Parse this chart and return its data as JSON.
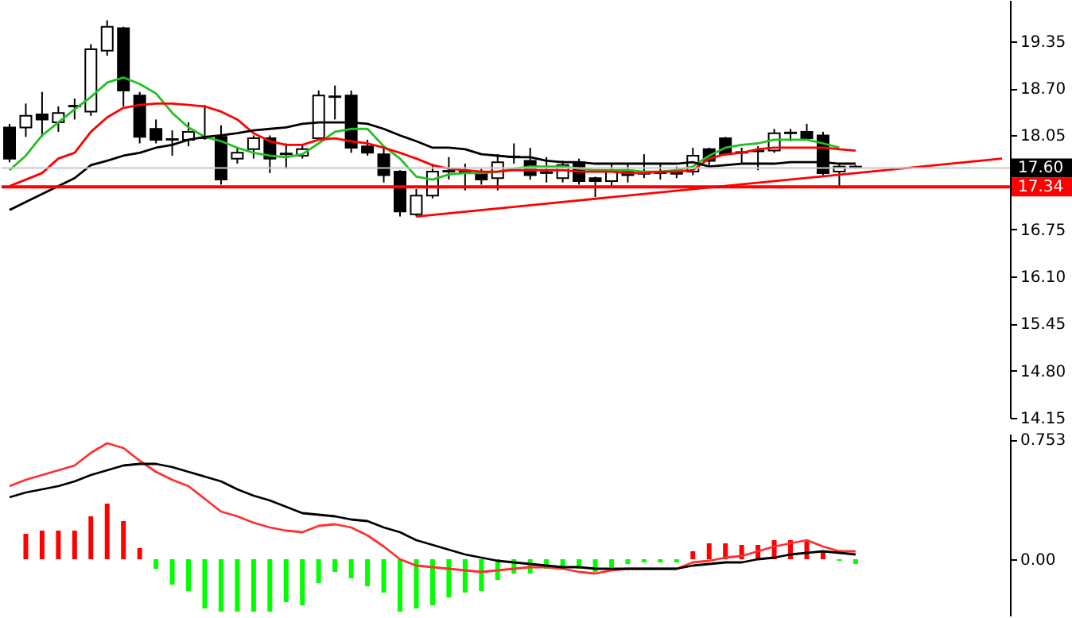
{
  "chart_data": [
    {
      "type": "candlestick",
      "tick_labels": "y",
      "categories": [
        null,
        null,
        null,
        null,
        null,
        null,
        null,
        null,
        null,
        null,
        null,
        null,
        null,
        null,
        null,
        null,
        null,
        null,
        null,
        null,
        null,
        null,
        null,
        null,
        null,
        null,
        null,
        null,
        null,
        null,
        null,
        null,
        null,
        null,
        null,
        null,
        null,
        null,
        null,
        null,
        null,
        null,
        null,
        null,
        null,
        null,
        null,
        null,
        null,
        null,
        null,
        null,
        null,
        null,
        null,
        null,
        null,
        null,
        null,
        null,
        null,
        null
      ],
      "ohlc": [
        [
          18.16,
          18.21,
          17.68,
          17.73
        ],
        [
          18.16,
          18.49,
          18.03,
          18.32
        ],
        [
          18.34,
          18.65,
          18.03,
          18.27
        ],
        [
          18.23,
          18.45,
          18.1,
          18.36
        ],
        [
          18.45,
          18.56,
          18.27,
          18.46
        ],
        [
          18.38,
          19.31,
          18.32,
          19.24
        ],
        [
          19.22,
          19.64,
          19.15,
          19.55
        ],
        [
          19.53,
          19.55,
          18.45,
          18.67
        ],
        [
          18.6,
          18.65,
          17.94,
          18.03
        ],
        [
          18.14,
          18.27,
          17.94,
          17.99
        ],
        [
          17.99,
          18.12,
          17.77,
          18.0
        ],
        [
          17.99,
          18.23,
          17.9,
          18.1
        ],
        [
          18.01,
          18.47,
          17.99,
          18.02
        ],
        [
          18.03,
          18.19,
          17.37,
          17.44
        ],
        [
          17.73,
          17.88,
          17.66,
          17.81
        ],
        [
          17.86,
          18.05,
          17.73,
          18.01
        ],
        [
          18.01,
          18.05,
          17.53,
          17.73
        ],
        [
          17.79,
          17.94,
          17.59,
          17.8
        ],
        [
          17.77,
          17.92,
          17.73,
          17.86
        ],
        [
          18.01,
          18.67,
          17.99,
          18.6
        ],
        [
          18.58,
          18.74,
          18.27,
          18.59
        ],
        [
          18.6,
          18.67,
          17.81,
          17.88
        ],
        [
          17.9,
          17.99,
          17.77,
          17.81
        ],
        [
          17.79,
          17.9,
          17.4,
          17.5
        ],
        [
          17.55,
          17.57,
          16.93,
          17.0
        ],
        [
          16.96,
          17.31,
          16.93,
          17.22
        ],
        [
          17.22,
          17.66,
          17.18,
          17.55
        ],
        [
          17.55,
          17.75,
          17.44,
          17.56
        ],
        [
          17.55,
          17.66,
          17.29,
          17.54
        ],
        [
          17.53,
          17.59,
          17.37,
          17.44
        ],
        [
          17.46,
          17.79,
          17.29,
          17.68
        ],
        [
          17.75,
          17.94,
          17.66,
          17.76
        ],
        [
          17.7,
          17.88,
          17.44,
          17.5
        ],
        [
          17.53,
          17.75,
          17.4,
          17.54
        ],
        [
          17.46,
          17.7,
          17.4,
          17.64
        ],
        [
          17.68,
          17.73,
          17.37,
          17.42
        ],
        [
          17.46,
          17.48,
          17.2,
          17.42
        ],
        [
          17.42,
          17.66,
          17.35,
          17.57
        ],
        [
          17.55,
          17.66,
          17.4,
          17.5
        ],
        [
          17.53,
          17.79,
          17.46,
          17.52
        ],
        [
          17.53,
          17.66,
          17.44,
          17.54
        ],
        [
          17.52,
          17.62,
          17.46,
          17.53
        ],
        [
          17.55,
          17.88,
          17.5,
          17.77
        ],
        [
          17.86,
          17.88,
          17.64,
          17.7
        ],
        [
          18.01,
          18.03,
          17.77,
          17.79
        ],
        [
          17.81,
          17.88,
          17.66,
          17.82
        ],
        [
          17.84,
          17.9,
          17.57,
          17.83
        ],
        [
          17.84,
          18.14,
          17.81,
          18.08
        ],
        [
          18.08,
          18.14,
          17.97,
          18.09
        ],
        [
          18.1,
          18.21,
          17.99,
          18.01
        ],
        [
          18.05,
          18.1,
          17.5,
          17.53
        ],
        [
          17.55,
          17.66,
          17.35,
          17.62
        ],
        [
          17.61,
          17.64,
          17.59,
          17.62
        ],
        null,
        null,
        null,
        null,
        null,
        null,
        null,
        null,
        null
      ],
      "series": [
        {
          "type": "line",
          "color": "#22c022",
          "values": [
            17.57,
            17.77,
            18.05,
            18.23,
            18.41,
            18.58,
            18.78,
            18.85,
            18.76,
            18.63,
            18.36,
            18.16,
            18.03,
            17.97,
            17.88,
            17.81,
            17.77,
            17.75,
            17.79,
            17.94,
            18.1,
            18.14,
            18.14,
            17.9,
            17.73,
            17.48,
            17.44,
            17.51,
            17.53,
            17.53,
            17.55,
            17.59,
            17.62,
            17.62,
            17.62,
            17.59,
            17.57,
            17.57,
            17.57,
            17.55,
            17.55,
            17.57,
            17.62,
            17.77,
            17.88,
            17.92,
            17.94,
            17.99,
            17.99,
            17.99,
            17.94,
            17.88,
            null,
            null,
            null,
            null,
            null,
            null,
            null,
            null,
            null,
            null
          ]
        },
        {
          "type": "line",
          "color": "#ff0000",
          "values": [
            17.35,
            17.44,
            17.53,
            17.73,
            17.81,
            18.1,
            18.3,
            18.43,
            18.47,
            18.49,
            18.49,
            18.47,
            18.45,
            18.38,
            18.27,
            18.08,
            17.97,
            17.92,
            17.92,
            17.99,
            18.01,
            17.97,
            17.94,
            17.88,
            17.81,
            17.73,
            17.64,
            17.59,
            17.57,
            17.55,
            17.55,
            17.57,
            17.57,
            17.57,
            17.57,
            17.55,
            17.55,
            17.55,
            17.53,
            17.53,
            17.55,
            17.55,
            17.57,
            17.73,
            17.79,
            17.81,
            17.86,
            17.88,
            17.88,
            17.88,
            17.88,
            17.86,
            17.84,
            null,
            null,
            null,
            null,
            null,
            null,
            null,
            null,
            null
          ]
        },
        {
          "type": "line",
          "color": "#000000",
          "values": [
            17.02,
            17.13,
            17.24,
            17.35,
            17.46,
            17.64,
            17.7,
            17.77,
            17.81,
            17.88,
            17.92,
            17.99,
            18.03,
            18.05,
            18.08,
            18.12,
            18.14,
            18.16,
            18.21,
            18.23,
            18.23,
            18.23,
            18.21,
            18.14,
            18.05,
            17.97,
            17.88,
            17.88,
            17.86,
            17.79,
            17.77,
            17.75,
            17.75,
            17.7,
            17.68,
            17.68,
            17.66,
            17.66,
            17.66,
            17.66,
            17.66,
            17.66,
            17.68,
            17.62,
            17.64,
            17.66,
            17.66,
            17.66,
            17.68,
            17.68,
            17.68,
            17.66,
            17.66,
            null,
            null,
            null,
            null,
            null,
            null,
            null,
            null,
            null
          ]
        },
        {
          "type": "line",
          "color": "#ff0000",
          "values": [
            null,
            null,
            null,
            null,
            null,
            null,
            null,
            null,
            null,
            null,
            null,
            null,
            null,
            null,
            null,
            null,
            null,
            null,
            null,
            null,
            null,
            null,
            null,
            null,
            null,
            16.93,
            null,
            null,
            null,
            null,
            null,
            null,
            null,
            null,
            null,
            null,
            null,
            null,
            null,
            null,
            null,
            null,
            null,
            null,
            null,
            null,
            null,
            null,
            null,
            null,
            null,
            null,
            null,
            null,
            null,
            null,
            null,
            null,
            null,
            null,
            null,
            17.73
          ]
        }
      ],
      "ylim": [
        14.15,
        19.92
      ],
      "yticks": [
        19.35,
        {
          "value": 18.7,
          "label": "18.70"
        },
        {
          "value": 18.05,
          "label": "18.05"
        },
        16.75,
        {
          "value": 16.1,
          "label": "16.10"
        },
        15.45,
        {
          "value": 14.8,
          "label": "14.80"
        },
        14.15
      ],
      "ref_lines": [
        {
          "axis": "y",
          "value": 17.6,
          "label": "17.60",
          "color": "#c8c8c8"
        },
        {
          "axis": "y",
          "value": 17.34,
          "label": "17.34",
          "color": "#ff0000"
        }
      ]
    },
    {
      "type": "bar",
      "tick_labels": "y",
      "categories": [
        null,
        null,
        null,
        null,
        null,
        null,
        null,
        null,
        null,
        null,
        null,
        null,
        null,
        null,
        null,
        null,
        null,
        null,
        null,
        null,
        null,
        null,
        null,
        null,
        null,
        null,
        null,
        null,
        null,
        null,
        null,
        null,
        null,
        null,
        null,
        null,
        null,
        null,
        null,
        null,
        null,
        null,
        null,
        null,
        null,
        null,
        null,
        null,
        null,
        null,
        null,
        null,
        null,
        null,
        null,
        null,
        null,
        null,
        null,
        null,
        null,
        null
      ],
      "series": [
        {
          "type": "bar",
          "color": "#ff0000",
          "values": [
            null,
            0.16,
            0.18,
            0.18,
            0.18,
            0.27,
            0.35,
            0.24,
            0.07,
            null,
            null,
            null,
            null,
            null,
            null,
            null,
            null,
            null,
            null,
            null,
            null,
            null,
            null,
            null,
            null,
            null,
            null,
            null,
            null,
            null,
            null,
            null,
            null,
            null,
            null,
            null,
            null,
            null,
            null,
            null,
            null,
            null,
            0.05,
            0.1,
            0.1,
            0.09,
            0.09,
            0.12,
            0.12,
            0.12,
            0.05,
            null,
            null,
            null,
            null,
            null,
            null,
            null,
            null,
            null,
            null,
            null
          ]
        },
        {
          "type": "bar",
          "color": "#00ff00",
          "values": [
            null,
            null,
            null,
            null,
            null,
            null,
            null,
            null,
            null,
            -0.06,
            -0.16,
            -0.2,
            -0.31,
            -0.33,
            -0.33,
            -0.33,
            -0.33,
            -0.27,
            -0.29,
            -0.15,
            -0.08,
            -0.12,
            -0.17,
            -0.21,
            -0.33,
            -0.31,
            -0.29,
            -0.24,
            -0.21,
            -0.2,
            -0.13,
            -0.09,
            -0.09,
            -0.06,
            -0.05,
            -0.06,
            -0.08,
            -0.05,
            -0.03,
            -0.02,
            -0.02,
            -0.02,
            null,
            null,
            null,
            null,
            null,
            null,
            null,
            null,
            null,
            -0.01,
            -0.03,
            null,
            null,
            null,
            null,
            null,
            null,
            null,
            null,
            null
          ]
        },
        {
          "type": "line",
          "color": "#ff3030",
          "values": [
            0.46,
            0.5,
            0.53,
            0.56,
            0.59,
            0.67,
            0.73,
            0.7,
            0.62,
            0.55,
            0.5,
            0.46,
            0.38,
            0.3,
            0.27,
            0.23,
            0.2,
            0.18,
            0.17,
            0.21,
            0.22,
            0.2,
            0.15,
            0.08,
            0.0,
            -0.04,
            -0.05,
            -0.06,
            -0.07,
            -0.08,
            -0.07,
            -0.06,
            -0.05,
            -0.05,
            -0.06,
            -0.08,
            -0.09,
            -0.07,
            -0.06,
            -0.06,
            -0.06,
            -0.06,
            -0.02,
            -0.01,
            0.01,
            0.02,
            0.05,
            0.08,
            0.1,
            0.12,
            0.08,
            0.05,
            0.05,
            null,
            null,
            null,
            null,
            null,
            null,
            null,
            null,
            null
          ]
        },
        {
          "type": "line",
          "color": "#000000",
          "values": [
            0.39,
            0.42,
            0.44,
            0.46,
            0.49,
            0.53,
            0.56,
            0.59,
            0.6,
            0.6,
            0.58,
            0.55,
            0.52,
            0.49,
            0.44,
            0.4,
            0.37,
            0.33,
            0.29,
            0.28,
            0.27,
            0.25,
            0.24,
            0.2,
            0.17,
            0.12,
            0.09,
            0.06,
            0.03,
            0.01,
            -0.01,
            -0.02,
            -0.03,
            -0.04,
            -0.05,
            -0.05,
            -0.06,
            -0.06,
            -0.06,
            -0.06,
            -0.06,
            -0.06,
            -0.04,
            -0.03,
            -0.02,
            -0.02,
            0.0,
            0.01,
            0.03,
            0.04,
            0.05,
            0.04,
            0.03,
            null,
            null,
            null,
            null,
            null,
            null,
            null,
            null,
            null
          ]
        }
      ],
      "ylim": [
        -0.36,
        0.79
      ],
      "yticks": [
        0.753,
        {
          "value": 0,
          "label": "0.00"
        }
      ]
    }
  ]
}
